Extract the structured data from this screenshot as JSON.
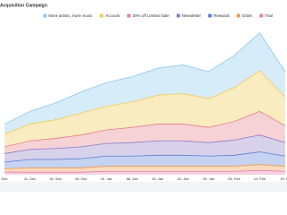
{
  "chart_data": {
    "type": "stacked-area",
    "title": "Acquisition Campaign",
    "categories": [
      "Dec",
      "11. Dec",
      "18. Dec",
      "25. Dec",
      "01. Jan",
      "08. Jan",
      "15. Jan",
      "22. Jan",
      "29. Jan",
      "05. Feb",
      "12. Feb",
      "19. Fe"
    ],
    "series": [
      {
        "name": "Trial",
        "color": "#e87aa6",
        "values": [
          3,
          3,
          3,
          3,
          4,
          4,
          4,
          4,
          4,
          4,
          5,
          4
        ]
      },
      {
        "name": "Order",
        "color": "#f2994a",
        "values": [
          4,
          5,
          5,
          5,
          6,
          6,
          6,
          6,
          6,
          6,
          7,
          6
        ]
      },
      {
        "name": "Rewards",
        "color": "#5b7fd6",
        "values": [
          8,
          10,
          10,
          11,
          12,
          12,
          13,
          13,
          12,
          13,
          15,
          12
        ]
      },
      {
        "name": "Newsletter",
        "color": "#8e7cc3",
        "values": [
          10,
          12,
          13,
          14,
          15,
          16,
          17,
          17,
          16,
          18,
          20,
          16
        ]
      },
      {
        "name": "30% off Limited Sale",
        "color": "#e57f8a",
        "values": [
          8,
          10,
          12,
          14,
          16,
          18,
          20,
          20,
          18,
          22,
          28,
          20
        ]
      },
      {
        "name": "Account",
        "color": "#f2c94c",
        "values": [
          15,
          20,
          22,
          26,
          28,
          30,
          34,
          36,
          34,
          40,
          48,
          34
        ]
      },
      {
        "name": "More artists, more music",
        "color": "#8cc8ef",
        "values": [
          12,
          15,
          20,
          25,
          28,
          30,
          32,
          34,
          32,
          38,
          45,
          30
        ]
      }
    ],
    "ylim": [
      0,
      175
    ]
  }
}
